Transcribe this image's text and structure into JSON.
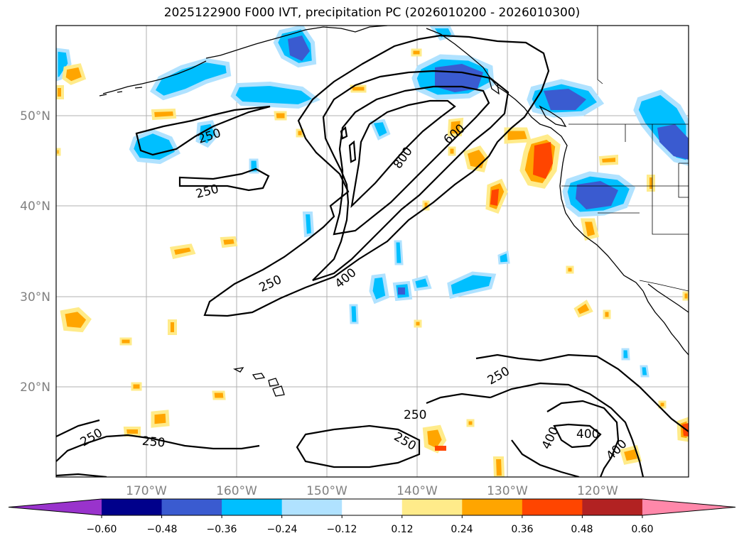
{
  "title": "2025122900 F000 IVT, precipitation PC (2026010200 - 2026010300)",
  "axes": {
    "lat_labels": [
      "50°N",
      "40°N",
      "30°N",
      "20°N"
    ],
    "lon_labels": [
      "170°W",
      "160°W",
      "150°W",
      "140°W",
      "130°W",
      "120°W"
    ]
  },
  "contour_labels": [
    "250",
    "250",
    "250",
    "250",
    "400",
    "800",
    "600",
    "250",
    "250",
    "250",
    "250",
    "400",
    "400"
  ],
  "colorbar": {
    "ticks": [
      "−0.60",
      "−0.48",
      "−0.36",
      "−0.24",
      "−0.12",
      "0.12",
      "0.24",
      "0.36",
      "0.48",
      "0.60"
    ],
    "colors": [
      "#9933cc",
      "#00008b",
      "#3a5bd0",
      "#00bfff",
      "#b0e2ff",
      "#ffffff",
      "#ffeb8a",
      "#ffa500",
      "#ff4500",
      "#b22222",
      "#ff88aa"
    ]
  },
  "colors": {
    "coast": "#000000",
    "grid": "#b0b0b0",
    "contour": "#000000"
  }
}
